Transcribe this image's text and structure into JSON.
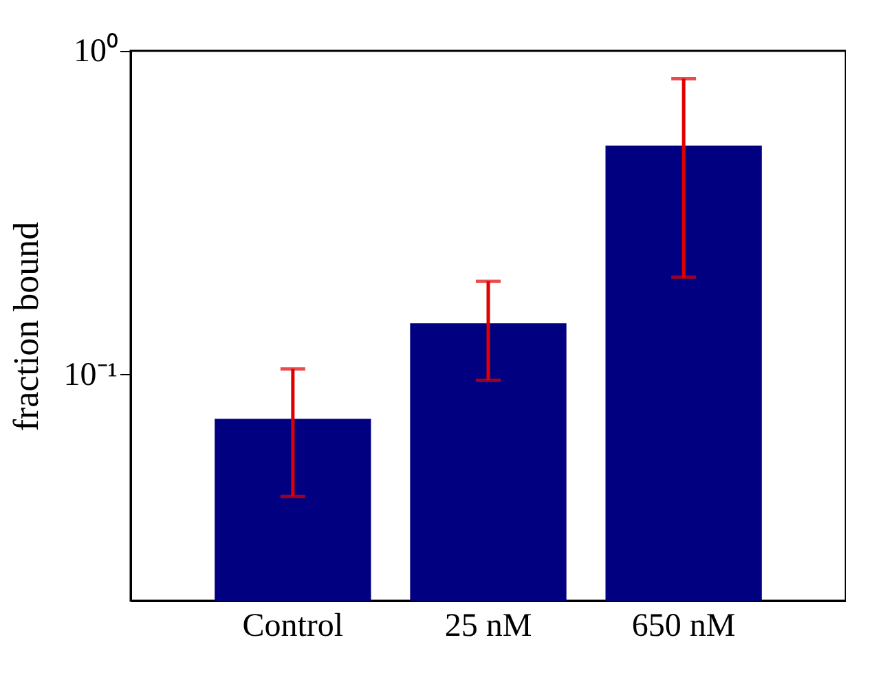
{
  "chart_data": {
    "type": "bar",
    "ylabel": "fraction bound",
    "categories": [
      "Control",
      "25 nM",
      "650 nM"
    ],
    "values": [
      0.073,
      0.144,
      0.51
    ],
    "errors": [
      [
        0.042,
        0.104
      ],
      [
        0.096,
        0.194
      ],
      [
        0.2,
        0.82
      ]
    ],
    "color": "#000080",
    "log": "y",
    "ylim": [
      0.02,
      1
    ],
    "yticks": [
      {
        "value": 0.1,
        "label": "10⁻¹"
      },
      {
        "value": 1,
        "label": "10⁰"
      }
    ],
    "grid": false
  }
}
